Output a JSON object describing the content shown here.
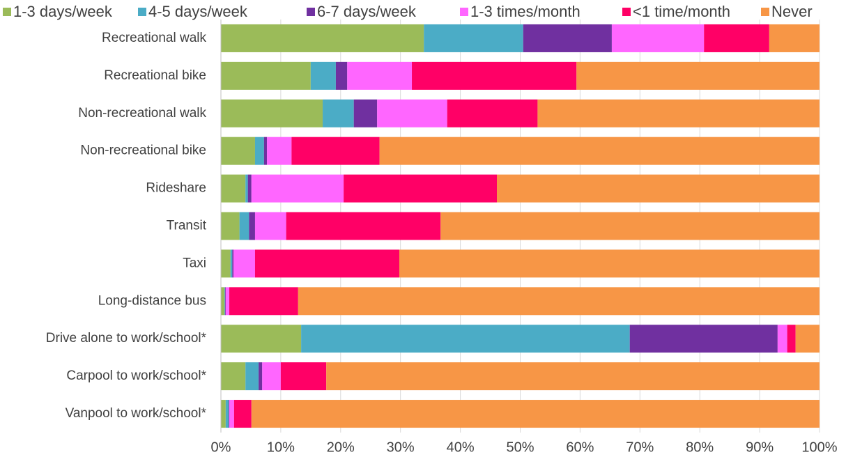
{
  "chart_data": {
    "type": "stacked-bar-horizontal",
    "categories": [
      "Recreational walk",
      "Recreational bike",
      "Non-recreational walk",
      "Non-recreational bike",
      "Rideshare",
      "Transit",
      "Taxi",
      "Long-distance bus",
      "Drive alone to work/school*",
      "Carpool to work/school*",
      "Vanpool to work/school*"
    ],
    "series": [
      {
        "name": "1-3 days/week",
        "color": "#9bbb59",
        "values": [
          33.9,
          15.0,
          17.0,
          5.7,
          4.1,
          3.1,
          1.6,
          0.6,
          13.4,
          4.1,
          0.8
        ]
      },
      {
        "name": "4-5 days/week",
        "color": "#4bacc6",
        "values": [
          16.6,
          4.2,
          5.2,
          1.5,
          0.4,
          1.6,
          0.3,
          0.1,
          54.9,
          2.2,
          0.5
        ]
      },
      {
        "name": "6-7 days/week",
        "color": "#7030a0",
        "values": [
          14.8,
          1.9,
          3.9,
          0.5,
          0.6,
          1.0,
          0.2,
          0.1,
          24.7,
          0.6,
          0.1
        ]
      },
      {
        "name": "1-3 times/month",
        "color": "#ff66ff",
        "values": [
          15.4,
          10.8,
          11.7,
          4.1,
          15.4,
          5.2,
          3.6,
          0.6,
          1.6,
          3.1,
          0.8
        ]
      },
      {
        "name": "<1 time/month",
        "color": "#ff0066",
        "values": [
          10.9,
          27.5,
          15.1,
          14.7,
          25.6,
          25.8,
          24.1,
          11.5,
          1.4,
          7.6,
          2.9
        ]
      },
      {
        "name": "Never",
        "color": "#f79646",
        "values": [
          8.4,
          40.6,
          47.1,
          73.5,
          53.9,
          63.3,
          70.2,
          87.1,
          4.0,
          82.4,
          94.9
        ]
      }
    ],
    "xlim": [
      0,
      100
    ],
    "xticks": [
      {
        "value": 0,
        "label": "0%"
      },
      {
        "value": 10,
        "label": "10%"
      },
      {
        "value": 20,
        "label": "20%"
      },
      {
        "value": 30,
        "label": "30%"
      },
      {
        "value": 40,
        "label": "40%"
      },
      {
        "value": 50,
        "label": "50%"
      },
      {
        "value": 60,
        "label": "60%"
      },
      {
        "value": 70,
        "label": "70%"
      },
      {
        "value": 80,
        "label": "80%"
      },
      {
        "value": 90,
        "label": "90%"
      },
      {
        "value": 100,
        "label": "100%"
      }
    ],
    "grid": true,
    "legend": "top"
  }
}
